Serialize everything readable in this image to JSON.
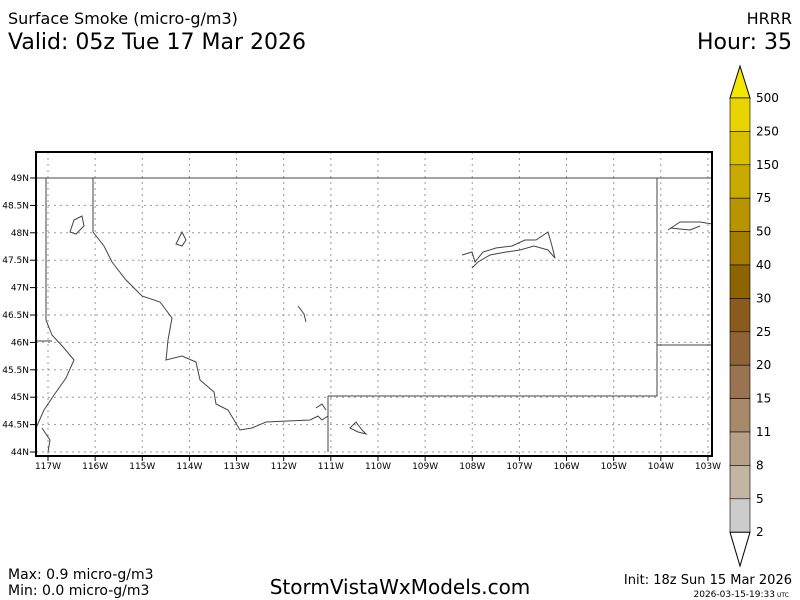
{
  "header": {
    "title": "Surface Smoke (micro-g/m3)",
    "valid": "Valid: 05z Tue 17 Mar 2026",
    "model": "HRRR",
    "hour": "Hour: 35"
  },
  "map": {
    "lat_labels": [
      "49N",
      "48.5N",
      "48N",
      "47.5N",
      "47N",
      "46.5N",
      "46N",
      "45.5N",
      "45N",
      "44.5N",
      "44N"
    ],
    "lon_labels": [
      "117W",
      "116W",
      "115W",
      "114W",
      "113W",
      "112W",
      "111W",
      "110W",
      "109W",
      "108W",
      "107W",
      "106W",
      "105W",
      "104W",
      "103W"
    ]
  },
  "colorbar": {
    "labels": [
      "500",
      "250",
      "150",
      "75",
      "50",
      "40",
      "30",
      "25",
      "20",
      "15",
      "11",
      "8",
      "5",
      "2"
    ],
    "over_color": "#f5e600",
    "segment_colors": [
      "#e8d400",
      "#d8c000",
      "#c8aa00",
      "#b89400",
      "#a47c00",
      "#8c6400",
      "#8a5a1e",
      "#8e6436",
      "#9a7450",
      "#a88a6a",
      "#b8a088",
      "#c4b4a4",
      "#cccccc"
    ],
    "under_color": "#ffffff"
  },
  "footer": {
    "max": "Max: 0.9 micro-g/m3",
    "min": "Min: 0.0 micro-g/m3",
    "site": "StormVistaWxModels.com",
    "init": "Init: 18z Sun 15 Mar 2026",
    "timestamp": "2026-03-15-19:33",
    "timezone": "UTC"
  }
}
